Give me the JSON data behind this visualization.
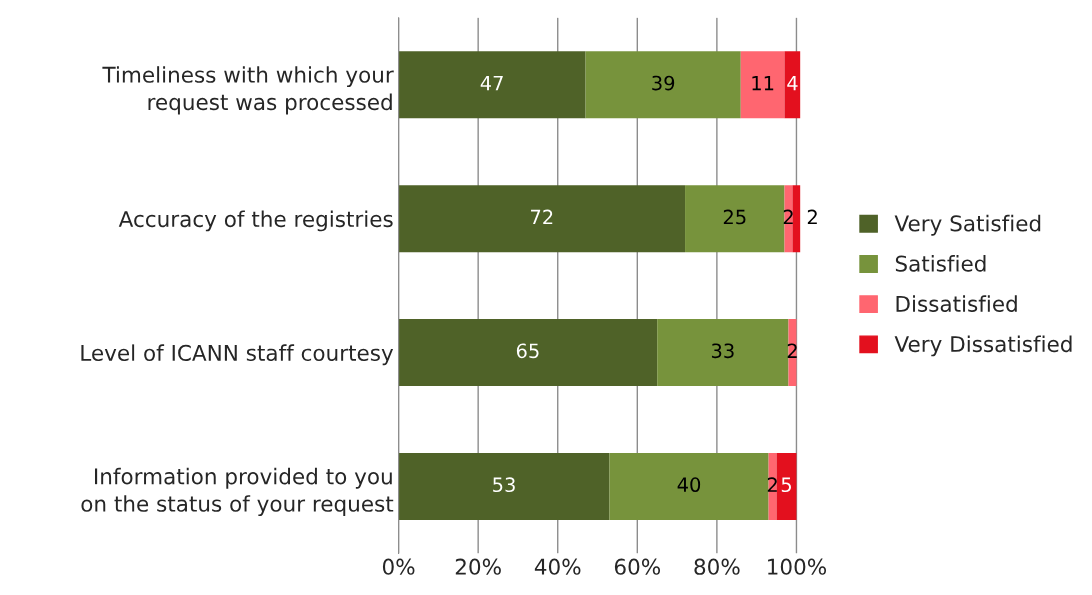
{
  "chart_data": {
    "type": "bar",
    "orientation": "horizontal",
    "stacked": true,
    "categories": [
      "Timeliness with which your\nrequest was processed",
      "Accuracy of the registries",
      "Level of ICANN staff courtesy",
      "Information provided to you\non the status of your request"
    ],
    "series": [
      {
        "name": "Very Satisfied",
        "color": "#4f6228",
        "values": [
          47,
          72,
          65,
          53
        ],
        "value_labels": [
          "47",
          "72",
          "65",
          "53"
        ]
      },
      {
        "name": "Satisfied",
        "color": "#77933c",
        "values": [
          39,
          25,
          33,
          40
        ],
        "value_labels": [
          "39",
          "25",
          "33",
          "40"
        ]
      },
      {
        "name": "Dissatisfied",
        "color": "#ff6670",
        "values": [
          11,
          2,
          2,
          2
        ],
        "value_labels": [
          "11",
          "2",
          "2",
          "2"
        ]
      },
      {
        "name": "Very Dissatisfied",
        "color": "#e3101e",
        "values": [
          4,
          2,
          null,
          5
        ],
        "value_labels": [
          "4",
          "2",
          null,
          "5"
        ]
      }
    ],
    "xlim": [
      0,
      101
    ],
    "xticks": [
      {
        "value": 0,
        "label": "0%"
      },
      {
        "value": 20,
        "label": "20%"
      },
      {
        "value": 40,
        "label": "40%"
      },
      {
        "value": 60,
        "label": "60%"
      },
      {
        "value": 80,
        "label": "80%"
      },
      {
        "value": 100,
        "label": "100%"
      }
    ],
    "grid": "x",
    "legend": "right"
  }
}
